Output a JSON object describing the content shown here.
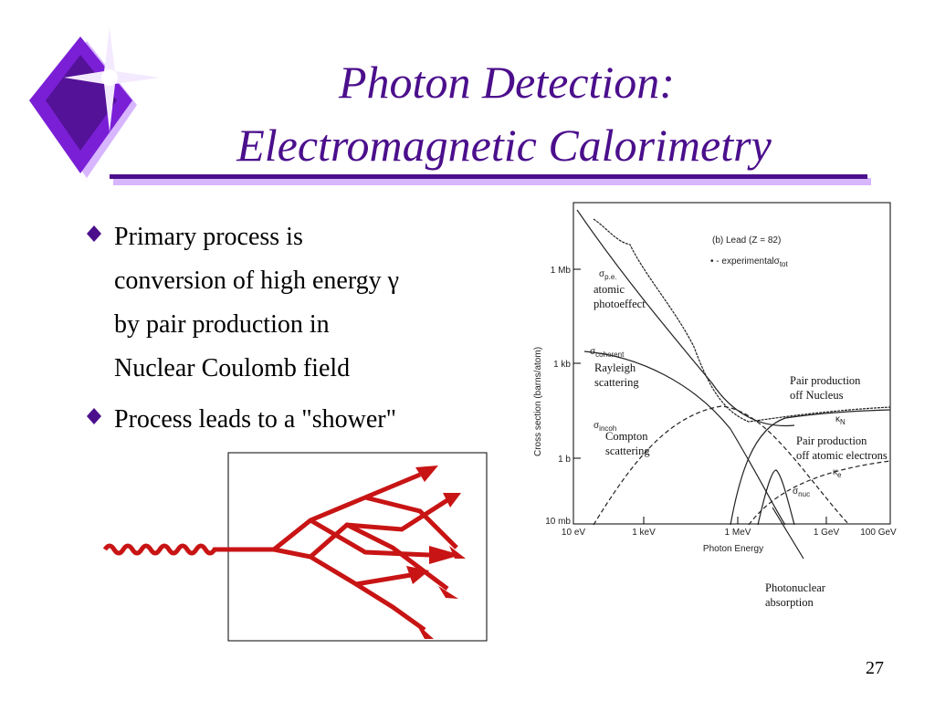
{
  "title": {
    "lines": [
      "Photon Detection:",
      "Electromagnetic Calorimetry"
    ]
  },
  "bullets": [
    {
      "lines": [
        "Primary process is",
        "conversion of high energy γ",
        "by pair production in",
        "Nuclear Coulomb field"
      ]
    },
    {
      "lines": [
        "Process leads to a \"shower\""
      ]
    }
  ],
  "figure": {
    "panel": "(b) Lead (Z = 82)",
    "legend": {
      "prefix": "• - experimental",
      "symbol": "σ",
      "sub": "tot"
    },
    "y_label": "Cross section (barns/atom)",
    "y_ticks": [
      "1 Mb",
      "1 kb",
      "1 b",
      "10 mb"
    ],
    "x_ticks": [
      "10 eV",
      "1 keV",
      "1 MeV",
      "1 GeV",
      "100 GeV"
    ],
    "x_label": "Photon Energy",
    "curve_labels": [
      {
        "symbol": "σ",
        "sub": "p.e."
      },
      {
        "symbol": "σ",
        "sub": "coherent"
      },
      {
        "symbol": "σ",
        "sub": "incoh"
      },
      {
        "symbol": "κ",
        "sub": "N"
      },
      {
        "symbol": "κ",
        "sub": "e"
      },
      {
        "symbol": "σ",
        "sub": "nuc"
      }
    ],
    "annotations": [
      {
        "lines": [
          "atomic",
          "photoeffect"
        ]
      },
      {
        "lines": [
          "Rayleigh",
          "scattering"
        ]
      },
      {
        "lines": [
          "Compton",
          "scattering"
        ]
      },
      {
        "lines": [
          "Pair production",
          "off Nucleus"
        ]
      },
      {
        "lines": [
          "Pair production",
          "off atomic electrons"
        ]
      },
      {
        "lines": [
          "Photonuclear",
          "absorption"
        ]
      }
    ]
  },
  "page_number": "27"
}
